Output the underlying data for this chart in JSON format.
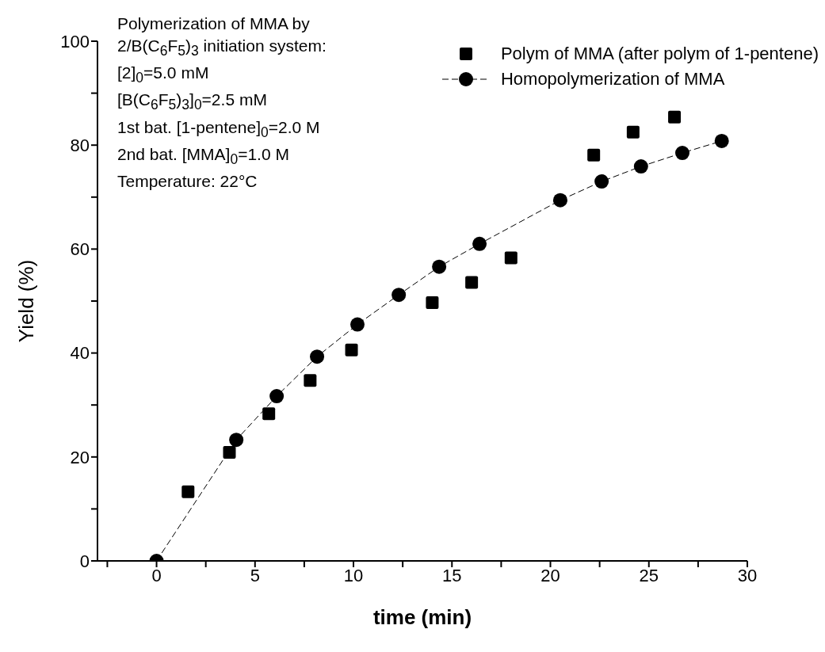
{
  "chart_data": {
    "type": "scatter",
    "xlabel": "time (min)",
    "ylabel": "Yield (%)",
    "annotations": [
      "Polymerization of MMA by",
      "2/B(C$_{6}$F$_{5}$)$_{3}$ initiation system:",
      "[2]$_{0}$=5.0 mM",
      "[B(C$_{6}$F$_{5}$)$_{3}$]$_{0}$=2.5 mM",
      "1st bat. [1-pentene]$_{0}$=2.0 M",
      "2nd bat. [MMA]$_{0}$=1.0 M",
      "Temperature: 22°C"
    ],
    "series": [
      {
        "name": "Polym of MMA (after polym of 1-pentene)",
        "marker": "square",
        "color": "#000000",
        "x": [
          1.6,
          3.7,
          5.7,
          7.8,
          9.9,
          14.0,
          16.0,
          18.0,
          22.2,
          24.2,
          26.3
        ],
        "values": [
          13.3,
          20.9,
          28.3,
          34.7,
          40.6,
          49.7,
          53.6,
          58.3,
          78.1,
          82.5,
          85.4
        ]
      },
      {
        "name": "Homopolymerization of MMA",
        "type": "line",
        "marker": "circle",
        "line_style": "dashed",
        "color": "#000000",
        "x": [
          0,
          4.05,
          6.1,
          8.15,
          10.2,
          12.3,
          14.35,
          16.4,
          20.5,
          22.6,
          24.6,
          26.7,
          28.7
        ],
        "values": [
          0,
          23.3,
          31.7,
          39.3,
          45.5,
          51.2,
          56.6,
          61.0,
          69.4,
          73.0,
          75.9,
          78.5,
          80.8
        ]
      }
    ],
    "xlim": [
      -3,
      30
    ],
    "xticks": [
      {
        "value": -2.5,
        "label": null
      },
      0,
      {
        "value": 2.5,
        "label": null
      },
      5,
      {
        "value": 7.5,
        "label": null
      },
      10,
      {
        "value": 12.5,
        "label": null
      },
      15,
      {
        "value": 17.5,
        "label": null
      },
      20,
      {
        "value": 22.5,
        "label": null
      },
      25,
      {
        "value": 27.5,
        "label": null
      },
      30
    ],
    "ylim": [
      0,
      100
    ],
    "yticks": [
      0,
      {
        "value": 10,
        "label": null
      },
      20,
      {
        "value": 30,
        "label": null
      },
      40,
      {
        "value": 50,
        "label": null
      },
      60,
      {
        "value": 70,
        "label": null
      },
      80,
      {
        "value": 90,
        "label": null
      },
      100
    ],
    "grid": false,
    "legend": "top right"
  }
}
